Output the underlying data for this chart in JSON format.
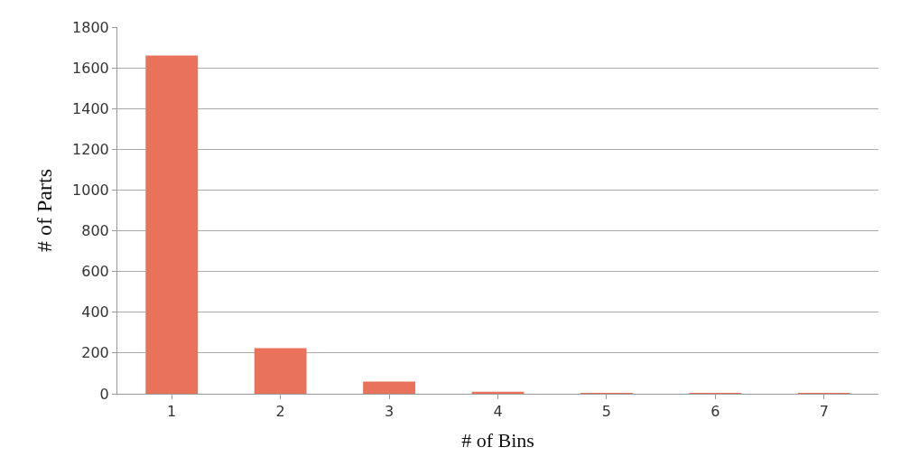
{
  "chart_data": {
    "type": "bar",
    "xlabel": "# of Bins",
    "ylabel": "# of Parts",
    "categories": [
      "1",
      "2",
      "3",
      "4",
      "5",
      "6",
      "7"
    ],
    "values": [
      1660,
      224,
      60,
      10,
      3,
      1,
      1
    ],
    "color": "#e8735a",
    "ylim": [
      0,
      1800
    ],
    "yticks": [
      0,
      200,
      400,
      600,
      800,
      1000,
      1200,
      1400,
      1600,
      1800
    ],
    "grid": "y"
  }
}
